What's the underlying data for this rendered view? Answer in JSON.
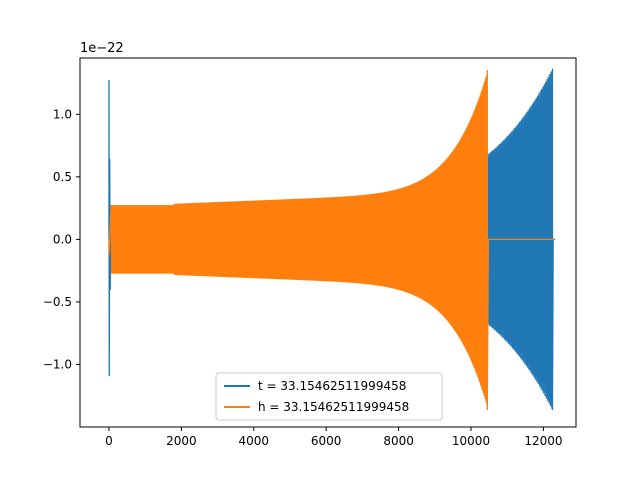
{
  "chart_data": {
    "type": "line",
    "title": "",
    "xlabel": "",
    "ylabel": "",
    "y_offset_label": "1e−22",
    "y_multiplier": 1e-22,
    "xlim": [
      -800,
      12900
    ],
    "ylim": [
      -1.5,
      1.45
    ],
    "x_ticks": [
      0,
      2000,
      4000,
      6000,
      8000,
      10000,
      12000
    ],
    "x_tick_labels": [
      "0",
      "2000",
      "4000",
      "6000",
      "8000",
      "10000",
      "12000"
    ],
    "y_ticks": [
      -1.0,
      -0.5,
      0.0,
      0.5,
      1.0
    ],
    "y_tick_labels": [
      "−1.0",
      "−0.5",
      "0.0",
      "0.5",
      "1.0"
    ],
    "grid": false,
    "legend_position": "lower-center",
    "series": [
      {
        "name": "t = 33.15462511999458",
        "color": "#1f77b4",
        "description_points": [
          {
            "x": 0,
            "y": 1.27
          },
          {
            "x": 0,
            "y": -1.09
          },
          {
            "x": 100,
            "y": 0.0
          },
          {
            "x": 1800,
            "y": 0.27
          },
          {
            "x": 10500,
            "y": 0.42
          },
          {
            "x": 12250,
            "y": 1.36
          },
          {
            "x": 12250,
            "y": -1.36
          },
          {
            "x": 12300,
            "y": 0.0
          }
        ]
      },
      {
        "name": "h = 33.15462511999458",
        "color": "#ff7f0e",
        "description_points": [
          {
            "x": 0,
            "y": 0.27
          },
          {
            "x": 1800,
            "y": 0.0
          },
          {
            "x": 5000,
            "y": 0.33
          },
          {
            "x": 10450,
            "y": 1.35
          },
          {
            "x": 10450,
            "y": -1.36
          },
          {
            "x": 10500,
            "y": 0.0
          },
          {
            "x": 12300,
            "y": 0.0
          }
        ]
      }
    ]
  }
}
